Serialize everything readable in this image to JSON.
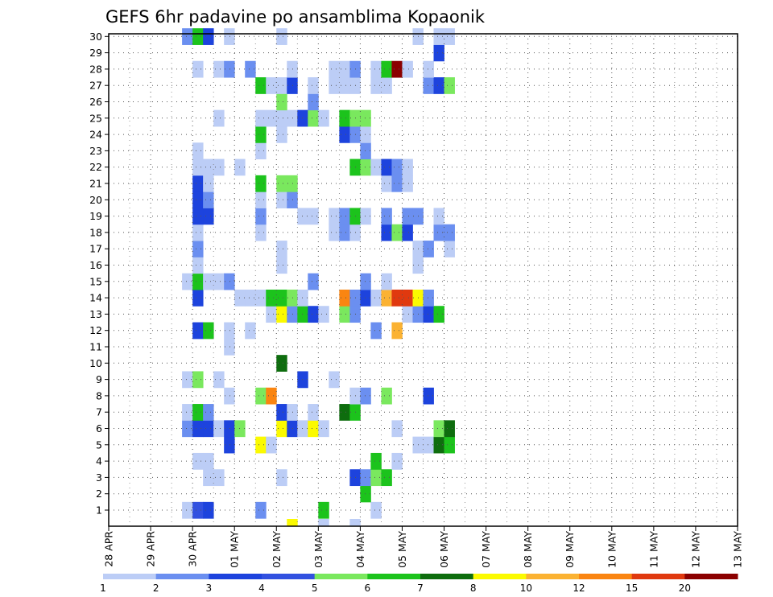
{
  "chart_data": {
    "type": "heatmap",
    "title": "GEFS 6hr padavine po ansamblima Kopaonik",
    "xlabel": "",
    "ylabel": "",
    "x_ticks": [
      "28 APR",
      "29 APR",
      "30 APR",
      "01 MAY",
      "02 MAY",
      "03 MAY",
      "04 MAY",
      "05 MAY",
      "06 MAY",
      "07 MAY",
      "08 MAY",
      "09 MAY",
      "10 MAY",
      "11 MAY",
      "12 MAY",
      "13 MAY"
    ],
    "y_ticks": [
      "1",
      "2",
      "3",
      "4",
      "5",
      "6",
      "7",
      "8",
      "9",
      "10",
      "11",
      "12",
      "13",
      "14",
      "15",
      "16",
      "17",
      "18",
      "19",
      "20",
      "21",
      "22",
      "23",
      "24",
      "25",
      "26",
      "27",
      "28",
      "29",
      "30"
    ],
    "x_unit": "6-hour step since 28 APR 00Z",
    "y_unit": "ensemble member",
    "grid": true,
    "legend_position": "bottom",
    "colorbar": {
      "labels": [
        "1",
        "2",
        "3",
        "4",
        "5",
        "6",
        "7",
        "8",
        "10",
        "12",
        "15",
        "20"
      ],
      "colors": [
        "#bccdf6",
        "#6b8ff0",
        "#1d43dd",
        "#3251e0",
        "#7ae85e",
        "#1cc31c",
        "#0e6d0e",
        "#fbfa00",
        "#fbb232",
        "#fa8511",
        "#e0390f",
        "#8b0000"
      ]
    },
    "values": [
      [
        1,
        7,
        1
      ],
      [
        1,
        8,
        4
      ],
      [
        1,
        9,
        3
      ],
      [
        1,
        14,
        2
      ],
      [
        1,
        20,
        6
      ],
      [
        1,
        25,
        1
      ],
      [
        2,
        24,
        6
      ],
      [
        3,
        9,
        1
      ],
      [
        3,
        10,
        1
      ],
      [
        3,
        16,
        1
      ],
      [
        3,
        23,
        3
      ],
      [
        3,
        24,
        2
      ],
      [
        3,
        25,
        5
      ],
      [
        3,
        26,
        6
      ],
      [
        4,
        8,
        1
      ],
      [
        4,
        9,
        1
      ],
      [
        4,
        25,
        6
      ],
      [
        4,
        27,
        1
      ],
      [
        5,
        11,
        3
      ],
      [
        5,
        14,
        9
      ],
      [
        5,
        15,
        1
      ],
      [
        5,
        29,
        1
      ],
      [
        5,
        30,
        1
      ],
      [
        5,
        31,
        7
      ],
      [
        5,
        32,
        6
      ],
      [
        6,
        7,
        2
      ],
      [
        6,
        8,
        3
      ],
      [
        6,
        9,
        3
      ],
      [
        6,
        10,
        1
      ],
      [
        6,
        11,
        3
      ],
      [
        6,
        12,
        5
      ],
      [
        6,
        16,
        8
      ],
      [
        6,
        17,
        3
      ],
      [
        6,
        18,
        1
      ],
      [
        6,
        19,
        8
      ],
      [
        6,
        20,
        1
      ],
      [
        6,
        27,
        1
      ],
      [
        6,
        31,
        5
      ],
      [
        6,
        32,
        7
      ],
      [
        7,
        7,
        1
      ],
      [
        7,
        8,
        6
      ],
      [
        7,
        9,
        2
      ],
      [
        7,
        16,
        3
      ],
      [
        7,
        17,
        1
      ],
      [
        7,
        19,
        1
      ],
      [
        7,
        22,
        7
      ],
      [
        7,
        23,
        6
      ],
      [
        8,
        11,
        1
      ],
      [
        8,
        14,
        5
      ],
      [
        8,
        15,
        12
      ],
      [
        8,
        23,
        1
      ],
      [
        8,
        24,
        2
      ],
      [
        8,
        26,
        5
      ],
      [
        8,
        30,
        3
      ],
      [
        9,
        7,
        1
      ],
      [
        9,
        8,
        5
      ],
      [
        9,
        10,
        1
      ],
      [
        9,
        18,
        3
      ],
      [
        9,
        21,
        1
      ],
      [
        10,
        16,
        7
      ],
      [
        11,
        11,
        1
      ],
      [
        12,
        11,
        1
      ],
      [
        12,
        13,
        1
      ],
      [
        12,
        8,
        3
      ],
      [
        12,
        9,
        6
      ],
      [
        12,
        25,
        2
      ],
      [
        12,
        27,
        10
      ],
      [
        13,
        15,
        1
      ],
      [
        13,
        16,
        8
      ],
      [
        13,
        17,
        2
      ],
      [
        13,
        18,
        6
      ],
      [
        13,
        19,
        3
      ],
      [
        13,
        20,
        1
      ],
      [
        13,
        22,
        5
      ],
      [
        13,
        23,
        2
      ],
      [
        13,
        28,
        1
      ],
      [
        13,
        29,
        2
      ],
      [
        13,
        30,
        3
      ],
      [
        13,
        31,
        6
      ],
      [
        14,
        8,
        3
      ],
      [
        14,
        12,
        1
      ],
      [
        14,
        13,
        1
      ],
      [
        14,
        14,
        1
      ],
      [
        14,
        15,
        6
      ],
      [
        14,
        16,
        6
      ],
      [
        14,
        17,
        5
      ],
      [
        14,
        18,
        1
      ],
      [
        14,
        22,
        12
      ],
      [
        14,
        23,
        2
      ],
      [
        14,
        24,
        3
      ],
      [
        14,
        25,
        1
      ],
      [
        14,
        26,
        10
      ],
      [
        14,
        27,
        15
      ],
      [
        14,
        28,
        15
      ],
      [
        14,
        29,
        8
      ],
      [
        14,
        30,
        2
      ],
      [
        15,
        7,
        1
      ],
      [
        15,
        8,
        6
      ],
      [
        15,
        9,
        1
      ],
      [
        15,
        10,
        1
      ],
      [
        15,
        11,
        2
      ],
      [
        15,
        19,
        2
      ],
      [
        15,
        24,
        2
      ],
      [
        15,
        26,
        1
      ],
      [
        16,
        8,
        1
      ],
      [
        16,
        16,
        1
      ],
      [
        16,
        29,
        1
      ],
      [
        17,
        8,
        2
      ],
      [
        17,
        16,
        1
      ],
      [
        17,
        29,
        1
      ],
      [
        17,
        30,
        2
      ],
      [
        17,
        32,
        1
      ],
      [
        18,
        8,
        1
      ],
      [
        18,
        14,
        1
      ],
      [
        18,
        21,
        1
      ],
      [
        18,
        22,
        2
      ],
      [
        18,
        23,
        1
      ],
      [
        18,
        26,
        3
      ],
      [
        18,
        27,
        5
      ],
      [
        18,
        28,
        3
      ],
      [
        18,
        31,
        2
      ],
      [
        18,
        32,
        2
      ],
      [
        19,
        8,
        3
      ],
      [
        19,
        9,
        3
      ],
      [
        19,
        14,
        2
      ],
      [
        19,
        18,
        1
      ],
      [
        19,
        19,
        1
      ],
      [
        19,
        21,
        1
      ],
      [
        19,
        22,
        2
      ],
      [
        19,
        23,
        6
      ],
      [
        19,
        24,
        1
      ],
      [
        19,
        26,
        2
      ],
      [
        19,
        28,
        2
      ],
      [
        19,
        29,
        2
      ],
      [
        19,
        31,
        1
      ],
      [
        20,
        8,
        3
      ],
      [
        20,
        9,
        2
      ],
      [
        20,
        14,
        1
      ],
      [
        20,
        16,
        1
      ],
      [
        20,
        17,
        2
      ],
      [
        21,
        8,
        3
      ],
      [
        21,
        9,
        1
      ],
      [
        21,
        14,
        6
      ],
      [
        21,
        16,
        5
      ],
      [
        21,
        17,
        5
      ],
      [
        21,
        26,
        1
      ],
      [
        21,
        27,
        2
      ],
      [
        21,
        28,
        1
      ],
      [
        22,
        8,
        1
      ],
      [
        22,
        9,
        1
      ],
      [
        22,
        10,
        1
      ],
      [
        22,
        12,
        1
      ],
      [
        22,
        23,
        6
      ],
      [
        22,
        24,
        5
      ],
      [
        22,
        25,
        1
      ],
      [
        22,
        26,
        3
      ],
      [
        22,
        27,
        2
      ],
      [
        22,
        28,
        1
      ],
      [
        23,
        8,
        1
      ],
      [
        23,
        14,
        1
      ],
      [
        23,
        24,
        2
      ],
      [
        24,
        14,
        6
      ],
      [
        24,
        16,
        1
      ],
      [
        24,
        22,
        3
      ],
      [
        24,
        23,
        2
      ],
      [
        24,
        24,
        1
      ],
      [
        25,
        10,
        1
      ],
      [
        25,
        14,
        1
      ],
      [
        25,
        15,
        1
      ],
      [
        25,
        16,
        1
      ],
      [
        25,
        17,
        1
      ],
      [
        25,
        18,
        3
      ],
      [
        25,
        19,
        5
      ],
      [
        25,
        20,
        1
      ],
      [
        25,
        22,
        6
      ],
      [
        25,
        23,
        5
      ],
      [
        25,
        24,
        5
      ],
      [
        26,
        16,
        5
      ],
      [
        26,
        19,
        2
      ],
      [
        27,
        14,
        6
      ],
      [
        27,
        15,
        1
      ],
      [
        27,
        16,
        1
      ],
      [
        27,
        17,
        3
      ],
      [
        27,
        19,
        1
      ],
      [
        27,
        21,
        1
      ],
      [
        27,
        22,
        1
      ],
      [
        27,
        23,
        1
      ],
      [
        27,
        25,
        1
      ],
      [
        27,
        26,
        1
      ],
      [
        27,
        30,
        2
      ],
      [
        27,
        31,
        3
      ],
      [
        27,
        32,
        5
      ],
      [
        28,
        8,
        1
      ],
      [
        28,
        10,
        1
      ],
      [
        28,
        11,
        2
      ],
      [
        28,
        13,
        2
      ],
      [
        28,
        17,
        1
      ],
      [
        28,
        21,
        1
      ],
      [
        28,
        22,
        1
      ],
      [
        28,
        23,
        2
      ],
      [
        28,
        25,
        1
      ],
      [
        28,
        26,
        6
      ],
      [
        28,
        27,
        20
      ],
      [
        28,
        28,
        1
      ],
      [
        28,
        30,
        1
      ],
      [
        29,
        31,
        3
      ],
      [
        30,
        7,
        2
      ],
      [
        30,
        8,
        6
      ],
      [
        30,
        9,
        3
      ],
      [
        30,
        11,
        1
      ],
      [
        30,
        16,
        1
      ],
      [
        30,
        29,
        1
      ],
      [
        30,
        31,
        1
      ],
      [
        30,
        32,
        1
      ],
      [
        0,
        17,
        9
      ],
      [
        0,
        20,
        1
      ],
      [
        0,
        23,
        1
      ]
    ]
  }
}
